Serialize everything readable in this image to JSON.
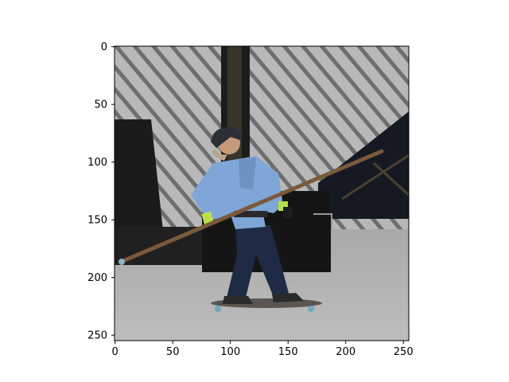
{
  "figure": {
    "image_description_icon": "skateboarder-photo",
    "background_color": "#ffffff",
    "axes_color": "#000000"
  },
  "axes": {
    "x_ticks": [
      "0",
      "50",
      "100",
      "150",
      "200",
      "250"
    ],
    "y_ticks": [
      "0",
      "50",
      "100",
      "150",
      "200",
      "250"
    ],
    "xlim": [
      0,
      255
    ],
    "ylim": [
      255,
      0
    ]
  },
  "photo": {
    "sky_color": "#b9b9b9",
    "stripe_color": "#6f6f6f",
    "dark_color": "#1a1a1a",
    "ground_color": "#b4b4b4",
    "shirt_color": "#7ea6d6",
    "jeans_color": "#1f2a44",
    "pole_color": "#7a5a3c",
    "glove_color": "#b9e04a"
  }
}
